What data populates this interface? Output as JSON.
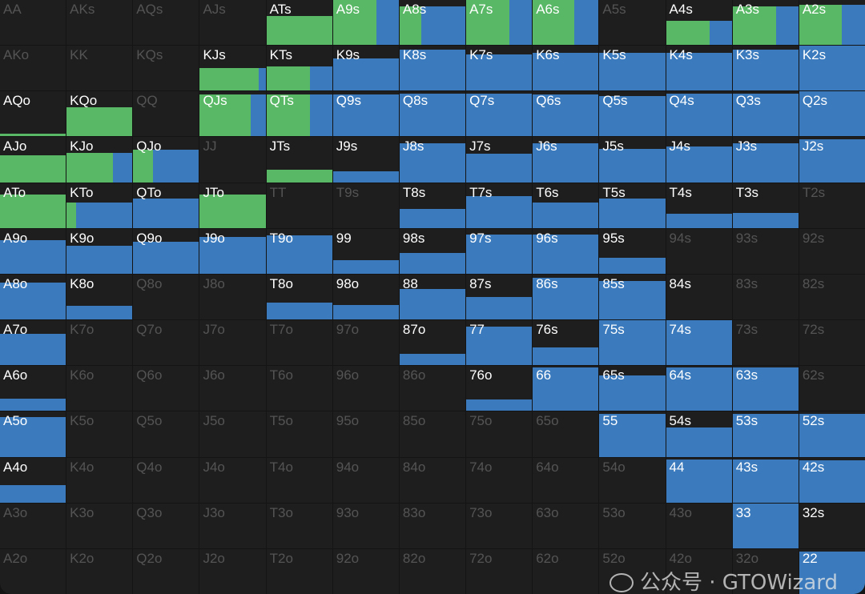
{
  "colors": {
    "raise": "#59b865",
    "call": "#3b7bbd",
    "cell": "#1e1e1e"
  },
  "watermark": "公众号 · GTOWizard",
  "legend_note": "cell: [hand, played_frequency, raise_share_of_played]",
  "rows": [
    [
      [
        "AA",
        0,
        0
      ],
      [
        "AKs",
        0,
        0
      ],
      [
        "AQs",
        0,
        0
      ],
      [
        "AJs",
        0,
        0
      ],
      [
        "ATs",
        0.65,
        1
      ],
      [
        "A9s",
        1,
        0.66
      ],
      [
        "A8s",
        0.86,
        0.33
      ],
      [
        "A7s",
        1,
        0.66
      ],
      [
        "A6s",
        1,
        0.63
      ],
      [
        "A5s",
        0,
        0
      ],
      [
        "A4s",
        0.53,
        0.66
      ],
      [
        "A3s",
        0.86,
        0.66
      ],
      [
        "A2s",
        0.9,
        0.65
      ]
    ],
    [
      [
        "AKo",
        0,
        0
      ],
      [
        "KK",
        0,
        0
      ],
      [
        "KQs",
        0,
        0
      ],
      [
        "KJs",
        0.5,
        0.9
      ],
      [
        "KTs",
        0.54,
        0.66
      ],
      [
        "K9s",
        0.72,
        0
      ],
      [
        "K8s",
        0.91,
        0
      ],
      [
        "K7s",
        0.8,
        0
      ],
      [
        "K6s",
        0.84,
        0
      ],
      [
        "K5s",
        0.84,
        0
      ],
      [
        "K4s",
        0.84,
        0
      ],
      [
        "K3s",
        0.91,
        0
      ],
      [
        "K2s",
        1,
        0
      ]
    ],
    [
      [
        "AQo",
        0.07,
        1
      ],
      [
        "KQo",
        0.65,
        1
      ],
      [
        "QQ",
        0,
        0
      ],
      [
        "QJs",
        0.93,
        0.77
      ],
      [
        "QTs",
        0.93,
        0.66
      ],
      [
        "Q9s",
        0.93,
        0
      ],
      [
        "Q8s",
        0.96,
        0
      ],
      [
        "Q7s",
        0.96,
        0
      ],
      [
        "Q6s",
        0.93,
        0
      ],
      [
        "Q5s",
        0.9,
        0
      ],
      [
        "Q4s",
        0.96,
        0
      ],
      [
        "Q3s",
        0.96,
        0
      ],
      [
        "Q2s",
        1,
        0
      ]
    ],
    [
      [
        "AJo",
        0.6,
        1
      ],
      [
        "KJo",
        0.65,
        0.7
      ],
      [
        "QJo",
        0.72,
        0.3
      ],
      [
        "JJ",
        0,
        0
      ],
      [
        "JTs",
        0.28,
        1
      ],
      [
        "J9s",
        0.24,
        0
      ],
      [
        "J8s",
        0.86,
        0
      ],
      [
        "J7s",
        0.63,
        0
      ],
      [
        "J6s",
        0.86,
        0
      ],
      [
        "J5s",
        0.75,
        0
      ],
      [
        "J4s",
        0.79,
        0
      ],
      [
        "J3s",
        0.86,
        0
      ],
      [
        "J2s",
        0.95,
        0
      ]
    ],
    [
      [
        "ATo",
        0.75,
        1
      ],
      [
        "KTo",
        0.56,
        0.15
      ],
      [
        "QTo",
        0.65,
        0
      ],
      [
        "JTo",
        0.75,
        1
      ],
      [
        "TT",
        0,
        0
      ],
      [
        "T9s",
        0,
        0
      ],
      [
        "T8s",
        0.42,
        0
      ],
      [
        "T7s",
        0.7,
        0
      ],
      [
        "T6s",
        0.56,
        0
      ],
      [
        "T5s",
        0.65,
        0
      ],
      [
        "T4s",
        0.32,
        0
      ],
      [
        "T3s",
        0.33,
        0
      ],
      [
        "T2s",
        0,
        0
      ]
    ],
    [
      [
        "A9o",
        0.74,
        0
      ],
      [
        "K9o",
        0.63,
        0
      ],
      [
        "Q9o",
        0.72,
        0
      ],
      [
        "J9o",
        0.82,
        0
      ],
      [
        "T9o",
        0.86,
        0
      ],
      [
        "99",
        0.3,
        0
      ],
      [
        "98s",
        0.47,
        0
      ],
      [
        "97s",
        0.88,
        0
      ],
      [
        "96s",
        0.88,
        0
      ],
      [
        "95s",
        0.35,
        0
      ],
      [
        "94s",
        0,
        0
      ],
      [
        "93s",
        0,
        0
      ],
      [
        "92s",
        0,
        0
      ]
    ],
    [
      [
        "A8o",
        0.82,
        0
      ],
      [
        "K8o",
        0.3,
        0
      ],
      [
        "Q8o",
        0,
        0
      ],
      [
        "J8o",
        0,
        0
      ],
      [
        "T8o",
        0.37,
        0
      ],
      [
        "98o",
        0.33,
        0
      ],
      [
        "88",
        0.67,
        0
      ],
      [
        "87s",
        0.5,
        0
      ],
      [
        "86s",
        0.93,
        0
      ],
      [
        "85s",
        0.86,
        0
      ],
      [
        "84s",
        0.01,
        0
      ],
      [
        "83s",
        0,
        0
      ],
      [
        "82s",
        0,
        0
      ]
    ],
    [
      [
        "A7o",
        0.7,
        0
      ],
      [
        "K7o",
        0,
        0
      ],
      [
        "Q7o",
        0,
        0
      ],
      [
        "J7o",
        0,
        0
      ],
      [
        "T7o",
        0,
        0
      ],
      [
        "97o",
        0,
        0
      ],
      [
        "87o",
        0.26,
        0
      ],
      [
        "77",
        0.86,
        0
      ],
      [
        "76s",
        0.4,
        0
      ],
      [
        "75s",
        1,
        0
      ],
      [
        "74s",
        1,
        0
      ],
      [
        "73s",
        0,
        0
      ],
      [
        "72s",
        0,
        0
      ]
    ],
    [
      [
        "A6o",
        0.28,
        0
      ],
      [
        "K6o",
        0,
        0
      ],
      [
        "Q6o",
        0,
        0
      ],
      [
        "J6o",
        0,
        0
      ],
      [
        "T6o",
        0,
        0
      ],
      [
        "96o",
        0,
        0
      ],
      [
        "86o",
        0,
        0
      ],
      [
        "76o",
        0.26,
        0
      ],
      [
        "66",
        0.96,
        0
      ],
      [
        "65s",
        0.79,
        0
      ],
      [
        "64s",
        0.96,
        0
      ],
      [
        "63s",
        0.96,
        0
      ],
      [
        "62s",
        0,
        0
      ]
    ],
    [
      [
        "A5o",
        0.88,
        0
      ],
      [
        "K5o",
        0,
        0
      ],
      [
        "Q5o",
        0,
        0
      ],
      [
        "J5o",
        0,
        0
      ],
      [
        "T5o",
        0,
        0
      ],
      [
        "95o",
        0,
        0
      ],
      [
        "85o",
        0,
        0
      ],
      [
        "75o",
        0,
        0
      ],
      [
        "65o",
        0,
        0
      ],
      [
        "55",
        0.96,
        0
      ],
      [
        "54s",
        0.65,
        0
      ],
      [
        "53s",
        0.96,
        0
      ],
      [
        "52s",
        0.96,
        0
      ]
    ],
    [
      [
        "A4o",
        0.39,
        0
      ],
      [
        "K4o",
        0,
        0
      ],
      [
        "Q4o",
        0,
        0
      ],
      [
        "J4o",
        0,
        0
      ],
      [
        "T4o",
        0,
        0
      ],
      [
        "94o",
        0,
        0
      ],
      [
        "84o",
        0,
        0
      ],
      [
        "74o",
        0,
        0
      ],
      [
        "64o",
        0,
        0
      ],
      [
        "54o",
        0,
        0
      ],
      [
        "44",
        0.96,
        0
      ],
      [
        "43s",
        0.96,
        0
      ],
      [
        "42s",
        0.93,
        0
      ]
    ],
    [
      [
        "A3o",
        0,
        0
      ],
      [
        "K3o",
        0,
        0
      ],
      [
        "Q3o",
        0,
        0
      ],
      [
        "J3o",
        0,
        0
      ],
      [
        "T3o",
        0,
        0
      ],
      [
        "93o",
        0,
        0
      ],
      [
        "83o",
        0,
        0
      ],
      [
        "73o",
        0,
        0
      ],
      [
        "63o",
        0,
        0
      ],
      [
        "53o",
        0,
        0
      ],
      [
        "43o",
        0,
        0
      ],
      [
        "33",
        1,
        0
      ],
      [
        "32s",
        0.01,
        0
      ]
    ],
    [
      [
        "A2o",
        0,
        0
      ],
      [
        "K2o",
        0,
        0
      ],
      [
        "Q2o",
        0,
        0
      ],
      [
        "J2o",
        0,
        0
      ],
      [
        "T2o",
        0,
        0
      ],
      [
        "92o",
        0,
        0
      ],
      [
        "82o",
        0,
        0
      ],
      [
        "72o",
        0,
        0
      ],
      [
        "62o",
        0,
        0
      ],
      [
        "52o",
        0,
        0
      ],
      [
        "42o",
        0,
        0
      ],
      [
        "32o",
        0,
        0
      ],
      [
        "22",
        0.95,
        0
      ]
    ]
  ]
}
